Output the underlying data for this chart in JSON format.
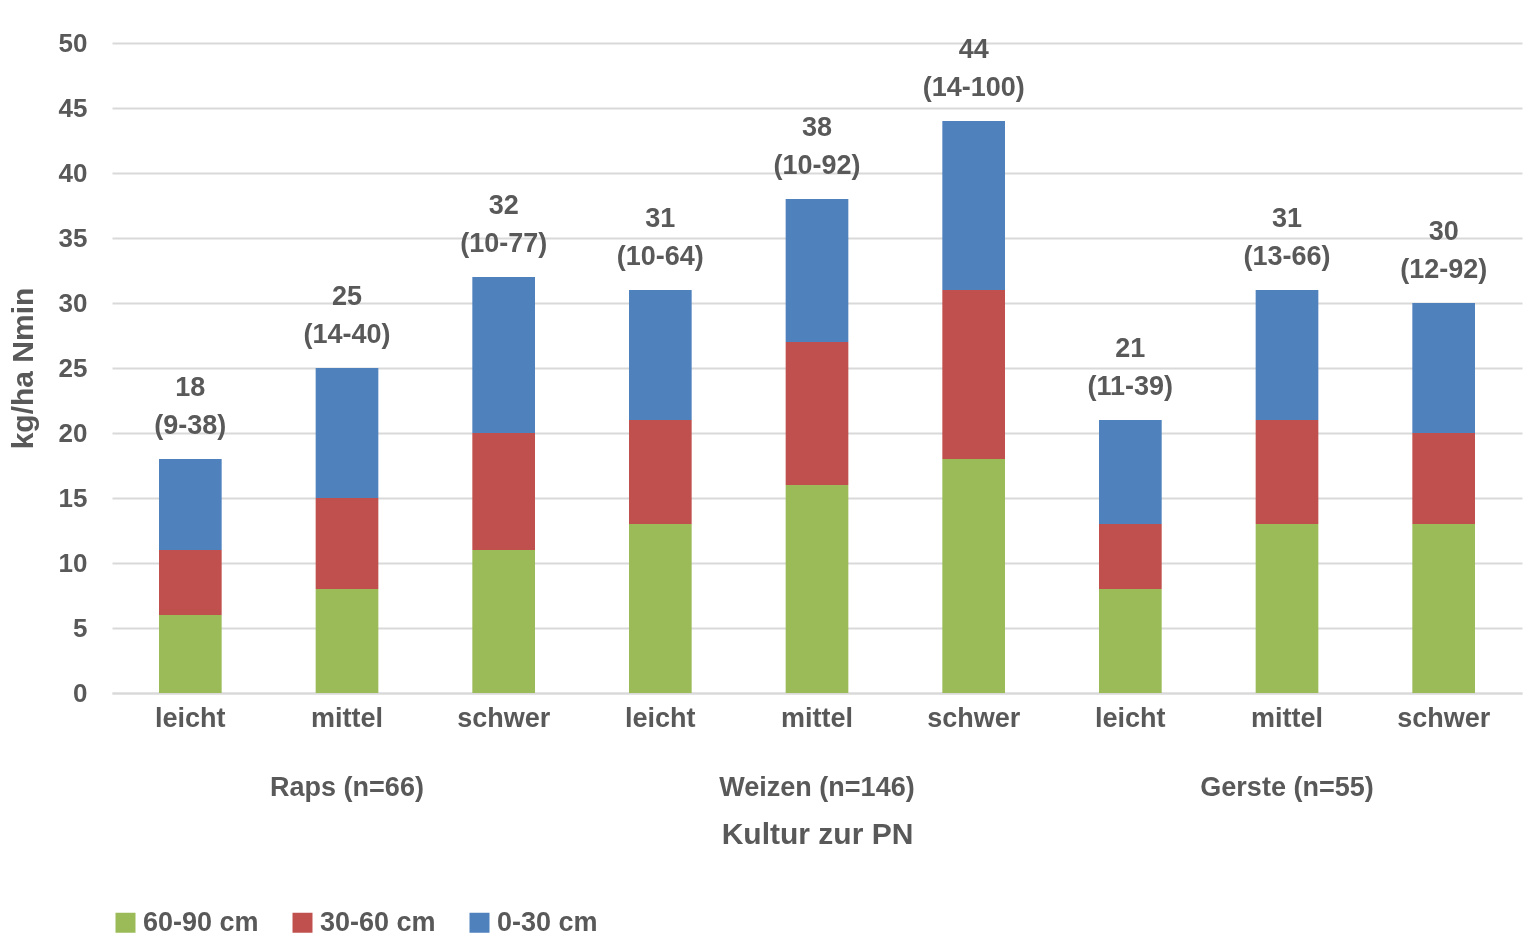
{
  "chart_data": {
    "type": "bar",
    "stacked": true,
    "xlabel": "Kultur zur PN",
    "ylabel": "kg/ha Nmin",
    "categories": [
      "leicht",
      "mittel",
      "schwer",
      "leicht",
      "mittel",
      "schwer",
      "leicht",
      "mittel",
      "schwer"
    ],
    "annotations": [
      "Raps (n=66)",
      "Weizen (n=146)",
      "Gerste (n=55)"
    ],
    "series": [
      {
        "name": "60-90 cm",
        "color": "#9bbb59",
        "values": [
          6,
          8,
          11,
          13,
          16,
          18,
          8,
          13,
          13
        ]
      },
      {
        "name": "30-60 cm",
        "color": "#c0504d",
        "values": [
          5,
          7,
          9,
          8,
          11,
          13,
          5,
          8,
          7
        ]
      },
      {
        "name": "0-30 cm",
        "color": "#4f81bd",
        "values": [
          7,
          10,
          12,
          10,
          11,
          13,
          8,
          10,
          10
        ]
      }
    ],
    "totals": [
      "18\n(9-38)",
      "25\n(14-40)",
      "32\n(10-77)",
      "31\n(10-64)",
      "38\n(10-92)",
      "44\n(14-100)",
      "21\n(11-39)",
      "31\n(13-66)",
      "30\n(12-92)"
    ],
    "ylim": [
      0,
      50
    ],
    "yticks": [
      0,
      5,
      10,
      15,
      20,
      25,
      30,
      35,
      40,
      45,
      50
    ],
    "grid": "y",
    "legend": "bottom"
  }
}
